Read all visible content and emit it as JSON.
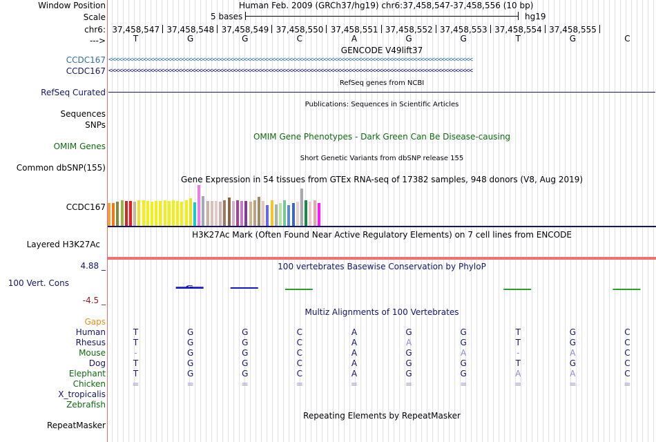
{
  "header": {
    "window_position_label": "Window Position",
    "window_position_value": "Human Feb. 2009 (GRCh37/hg19)   chr6:37,458,547-37,458,556 (10 bp)",
    "scale_label": "Scale",
    "scale_value": "5 bases",
    "scale_assembly": "hg19",
    "chrom_label": "chr6:",
    "strand_label": "--->",
    "positions": [
      "37,458,547",
      "37,458,548",
      "37,458,549",
      "37,458,550",
      "37,458,551",
      "37,458,552",
      "37,458,553",
      "37,458,554",
      "37,458,555"
    ],
    "bases": [
      "T",
      "G",
      "G",
      "C",
      "A",
      "G",
      "G",
      "T",
      "G",
      "C"
    ]
  },
  "tracks": {
    "gencode": {
      "title": "GENCODE V49lift37",
      "items": [
        {
          "label": "CCDC167",
          "color": "#2c6ea5"
        },
        {
          "label": "CCDC167",
          "color": "#14146e"
        }
      ],
      "arrow_text": "<<<<<<<<<<<<<<<<<<<<<<<<<<<<<<<<<<<<<<<<<<<<<<<<<<<<<<<<<<<<<<<<<<<<<<<<<<<<<<<<<<<<<<<<<<<<<<<<<<<<<<<<<"
    },
    "refseq": {
      "title": "RefSeq genes from NCBI",
      "label": "RefSeq Curated",
      "color": "#14146e"
    },
    "publications": {
      "title": "Publications: Sequences in Scientific Articles",
      "label": "Sequences"
    },
    "snps": {
      "label": "SNPs"
    },
    "omim": {
      "title": "OMIM Gene Phenotypes - Dark Green Can Be Disease-causing",
      "label": "OMIM Genes",
      "color": "#0d6b0d"
    },
    "dbsnp": {
      "title": "Short Genetic Variants from dbSNP release 155",
      "label": "Common dbSNP(155)"
    },
    "gtex": {
      "title": "Gene Expression in 54 tissues from GTEx RNA-seq of 17382 samples, 948 donors (V8, Aug 2019)",
      "label": "CCDC167",
      "bars": [
        {
          "v": 0.55,
          "c": "#f4a03c"
        },
        {
          "v": 0.55,
          "c": "#f07818"
        },
        {
          "v": 0.58,
          "c": "#7d8c3c"
        },
        {
          "v": 0.62,
          "c": "#a0b43c"
        },
        {
          "v": 0.6,
          "c": "#d22828"
        },
        {
          "v": 0.6,
          "c": "#ff1414"
        },
        {
          "v": 0.58,
          "c": "#c8b4a0"
        },
        {
          "v": 0.62,
          "c": "#e6e61e"
        },
        {
          "v": 0.62,
          "c": "#f0f014"
        },
        {
          "v": 0.6,
          "c": "#f0f014"
        },
        {
          "v": 0.58,
          "c": "#f0f014"
        },
        {
          "v": 0.6,
          "c": "#f0f014"
        },
        {
          "v": 0.6,
          "c": "#f0f014"
        },
        {
          "v": 0.62,
          "c": "#f0f014"
        },
        {
          "v": 0.6,
          "c": "#f0f014"
        },
        {
          "v": 0.62,
          "c": "#f0f014"
        },
        {
          "v": 0.6,
          "c": "#f0f014"
        },
        {
          "v": 0.58,
          "c": "#f0f014"
        },
        {
          "v": 0.62,
          "c": "#f0f014"
        },
        {
          "v": 0.66,
          "c": "#e6e61e"
        },
        {
          "v": 0.56,
          "c": "#19c8c8"
        },
        {
          "v": 0.98,
          "c": "#e87ee6"
        },
        {
          "v": 0.72,
          "c": "#a0aab4"
        },
        {
          "v": 0.6,
          "c": "#c8b4a0"
        },
        {
          "v": 0.6,
          "c": "#dcbeb4"
        },
        {
          "v": 0.6,
          "c": "#e6c8c8"
        },
        {
          "v": 0.58,
          "c": "#d2b4b4"
        },
        {
          "v": 0.62,
          "c": "#a0785a"
        },
        {
          "v": 0.68,
          "c": "#8c6446"
        },
        {
          "v": 0.6,
          "c": "#d2b4c8"
        },
        {
          "v": 0.62,
          "c": "#9b4b8c"
        },
        {
          "v": 0.6,
          "c": "#c878c8"
        },
        {
          "v": 0.6,
          "c": "#7d3c96"
        },
        {
          "v": 0.58,
          "c": "#d2b48c"
        },
        {
          "v": 0.62,
          "c": "#bea082"
        },
        {
          "v": 0.7,
          "c": "#a08c64"
        },
        {
          "v": 0.6,
          "c": "#e6c8b4"
        },
        {
          "v": 0.5,
          "c": "#6464ff"
        },
        {
          "v": 0.62,
          "c": "#f0c828"
        },
        {
          "v": 0.52,
          "c": "#aab4aa"
        },
        {
          "v": 0.55,
          "c": "#b4e6a0"
        },
        {
          "v": 0.62,
          "c": "#78c896"
        },
        {
          "v": 0.5,
          "c": "#5a8cd2"
        },
        {
          "v": 0.55,
          "c": "#3c64d2"
        },
        {
          "v": 0.58,
          "c": "#e6d2c8"
        },
        {
          "v": 0.9,
          "c": "#aaaaaa"
        },
        {
          "v": 0.62,
          "c": "#148c46"
        },
        {
          "v": 0.58,
          "c": "#f0c8c8"
        },
        {
          "v": 0.62,
          "c": "#dcaaaa"
        },
        {
          "v": 0.55,
          "c": "#ff14ff"
        }
      ]
    },
    "h3k27ac": {
      "title": "H3K27Ac Mark (Often Found Near Active Regulatory Elements) on 7 cell lines from ENCODE",
      "label": "Layered H3K27Ac"
    },
    "phylop": {
      "title": "100 vertebrates Basewise Conservation by PhyloP",
      "label": "100 Vert. Cons",
      "max": "4.88 _",
      "min": "-4.5 _",
      "values": [
        0,
        0.6,
        0.1,
        -0.1,
        0,
        0,
        0,
        -0.3,
        0,
        -0.05
      ]
    },
    "multiz": {
      "title": "Multiz Alignments of 100 Vertebrates",
      "gaps_label": "Gaps",
      "species": [
        {
          "name": "Human",
          "color": "#14146e",
          "seq": [
            "T",
            "G",
            "G",
            "C",
            "A",
            "G",
            "G",
            "T",
            "G",
            "C"
          ]
        },
        {
          "name": "Rhesus",
          "color": "#14146e",
          "seq": [
            "T",
            "G",
            "G",
            "C",
            "A",
            "A",
            "G",
            "T",
            "G",
            "C"
          ]
        },
        {
          "name": "Mouse",
          "color": "#0d6b0d",
          "seq": [
            "-",
            "G",
            "G",
            "C",
            "A",
            "G",
            "A",
            "-",
            "A",
            "C"
          ]
        },
        {
          "name": "Dog",
          "color": "#14146e",
          "seq": [
            "T",
            "G",
            "G",
            "C",
            "A",
            "G",
            "G",
            "T",
            "G",
            "C"
          ]
        },
        {
          "name": "Elephant",
          "color": "#0d6b0d",
          "seq": [
            "T",
            "G",
            "G",
            "C",
            "A",
            "G",
            "G",
            "A",
            "A",
            "C"
          ]
        },
        {
          "name": "Chicken",
          "color": "#0d6b0d",
          "seq": [
            "=",
            "=",
            "=",
            "=",
            "=",
            "=",
            "=",
            "=",
            "=",
            "="
          ]
        },
        {
          "name": "X_tropicalis",
          "color": "#14146e",
          "seq": [
            "",
            "",
            "",
            "",
            "",
            "",
            "",
            "",
            "",
            ""
          ]
        },
        {
          "name": "Zebrafish",
          "color": "#0d6b0d",
          "seq": [
            "",
            "",
            "",
            "",
            "",
            "",
            "",
            "",
            "",
            ""
          ]
        }
      ]
    },
    "repeatmasker": {
      "title": "Repeating Elements by RepeatMasker",
      "label": "RepeatMasker"
    }
  },
  "colors": {
    "label_blue": "#2c6ea5",
    "label_navy": "#14146e",
    "label_green": "#0d6b0d",
    "label_orange": "#e0901c",
    "phylop_max": "#14146e",
    "phylop_min": "#8b1c1c",
    "h3k27ac_line": "#f07070"
  }
}
